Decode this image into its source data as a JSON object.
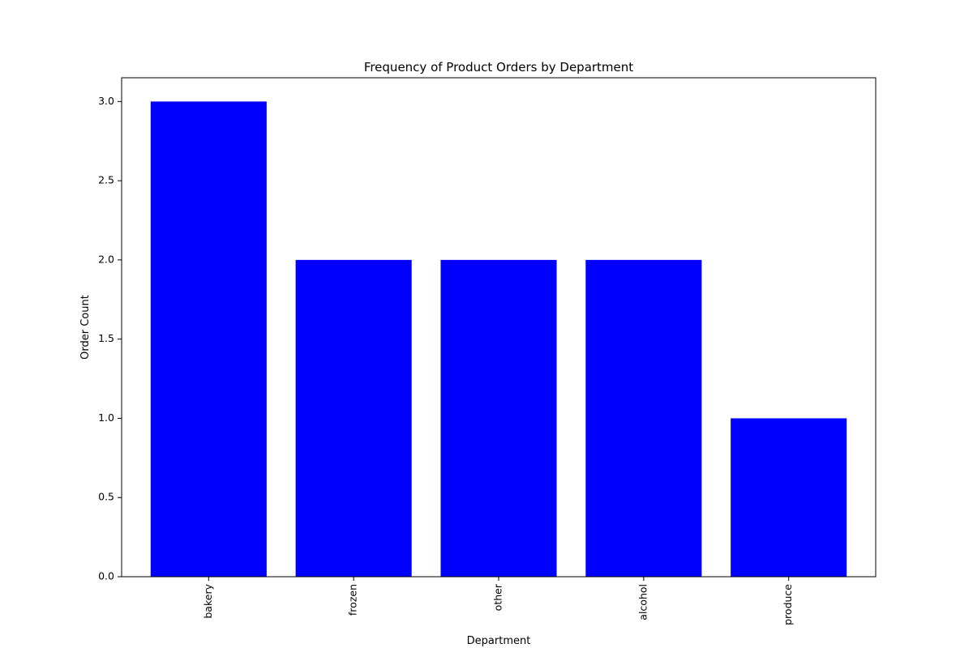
{
  "chart_data": {
    "type": "bar",
    "title": "Frequency of Product Orders by Department",
    "xlabel": "Department",
    "ylabel": "Order Count",
    "categories": [
      "bakery",
      "frozen",
      "other",
      "alcohol",
      "produce"
    ],
    "values": [
      3,
      2,
      2,
      2,
      1
    ],
    "ylim": [
      0,
      3.15
    ],
    "yticks": [
      0.0,
      0.5,
      1.0,
      1.5,
      2.0,
      2.5,
      3.0
    ],
    "ytick_labels": [
      "0.0",
      "0.5",
      "1.0",
      "1.5",
      "2.0",
      "2.5",
      "3.0"
    ],
    "x_tick_rotation": "vertical",
    "bar_color": "#0000ff",
    "grid": false,
    "legend": "none"
  }
}
